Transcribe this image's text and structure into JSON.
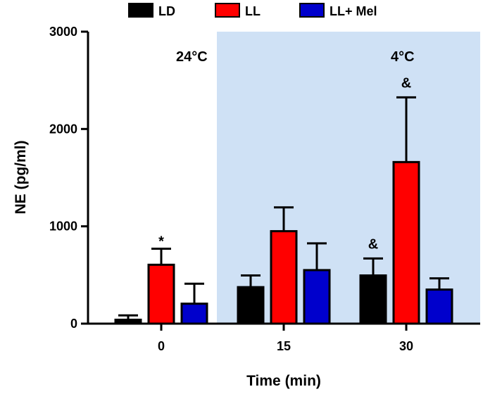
{
  "chart_data": {
    "type": "bar",
    "title": "",
    "xlabel": "Time (min)",
    "ylabel": "NE (pg/ml)",
    "ylim": [
      0,
      3000
    ],
    "y_ticks": [
      "0",
      "1000",
      "2000",
      "3000"
    ],
    "categories": [
      "0",
      "15",
      "30"
    ],
    "series": [
      {
        "name": "LD",
        "color": "#000000",
        "values": [
          40,
          375,
          495
        ],
        "errors": [
          45,
          120,
          175
        ]
      },
      {
        "name": "LL",
        "color": "#ff0000",
        "values": [
          605,
          950,
          1660
        ],
        "errors": [
          165,
          245,
          665
        ]
      },
      {
        "name": "LL+ Mel",
        "color": "#0000cc",
        "values": [
          205,
          550,
          350
        ],
        "errors": [
          205,
          275,
          115
        ]
      }
    ],
    "shaded_region": {
      "color": "#cfe1f5",
      "start_category_index": 1
    },
    "region_labels": [
      "24°C",
      "4°C"
    ],
    "annotations": [
      {
        "text": "*",
        "category_index": 0,
        "series_index": 1
      },
      {
        "text": "&",
        "category_index": 2,
        "series_index": 0
      },
      {
        "text": "&",
        "category_index": 2,
        "series_index": 1
      }
    ]
  }
}
